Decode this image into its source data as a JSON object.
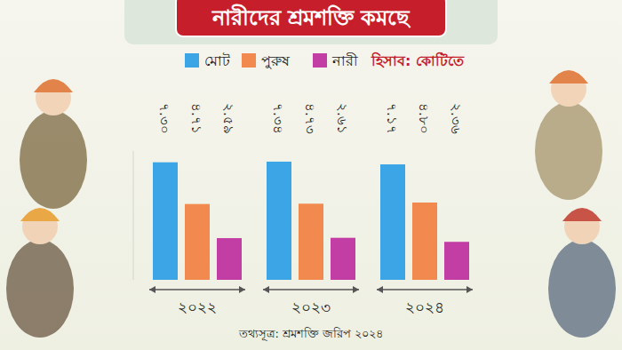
{
  "chart_data": {
    "type": "bar",
    "title": "নারীদের শ্রমশক্তি কমছে",
    "annotations": [
      "হিসাব: কোটিতে"
    ],
    "source": "তথ্যসূত্র: শ্রমশক্তি জরিপ ২০২৪",
    "categories": [
      "২০২২",
      "২০২৩",
      "২০২৪"
    ],
    "series": [
      {
        "name": "মোট",
        "color": "#3ba5e6",
        "values": [
          7.3,
          7.34,
          7.17
        ],
        "value_labels": [
          "৭.৩০",
          "৭.৩৪",
          "৭.১৭"
        ]
      },
      {
        "name": "পুরুষ",
        "color": "#f28a50",
        "values": [
          4.71,
          4.73,
          4.8
        ],
        "value_labels": [
          "৪.৭১",
          "৪.৭৩",
          "৪.৮০"
        ]
      },
      {
        "name": "নারী",
        "color": "#c23ea4",
        "values": [
          2.59,
          2.61,
          2.36
        ],
        "value_labels": [
          "২.৫৯",
          "২.৬১",
          "২.৩৬"
        ]
      }
    ],
    "ylim": [
      0,
      8
    ],
    "tick_labels": false,
    "grid": false,
    "data_labels": true,
    "legend": "top"
  }
}
